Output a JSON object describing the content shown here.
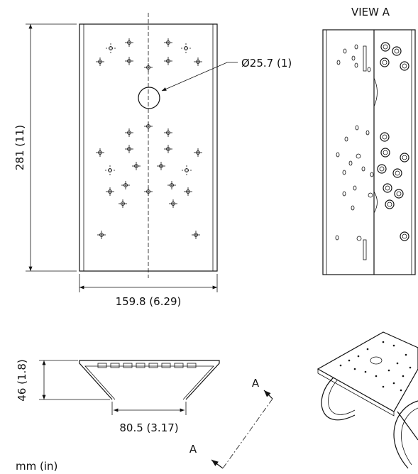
{
  "view_label": "VIEW A",
  "dimensions": {
    "hole_diameter": "Ø25.7 (1)",
    "height": "281 (11)",
    "width": "159.8 (6.29)",
    "depth": "46 (1.8)",
    "bottom_width": "80.5 (3.17)"
  },
  "section_markers": [
    "A",
    "A"
  ],
  "units": "mm (in)"
}
